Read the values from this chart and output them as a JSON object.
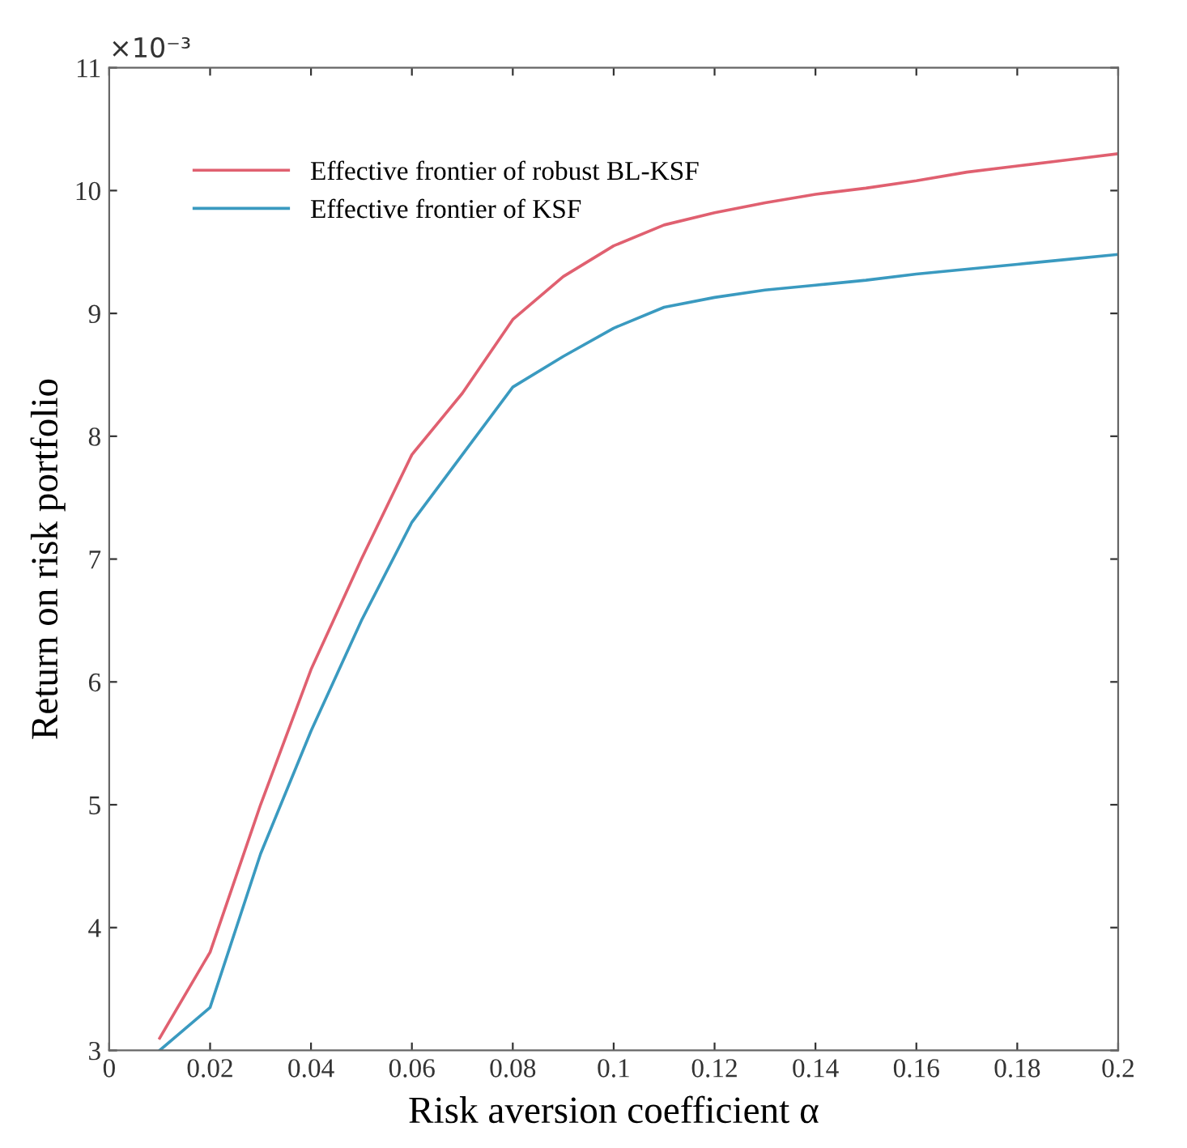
{
  "chart_data": {
    "type": "line",
    "xlabel": "Risk aversion coefficient α",
    "ylabel": "Return on risk portfolio",
    "annotations": [
      "×10⁻³"
    ],
    "x": [
      0.01,
      0.02,
      0.03,
      0.04,
      0.05,
      0.06,
      0.07,
      0.08,
      0.09,
      0.1,
      0.11,
      0.12,
      0.13,
      0.14,
      0.15,
      0.16,
      0.17,
      0.18,
      0.19,
      0.2
    ],
    "series": [
      {
        "name": "Effective frontier of robust BL-KSF",
        "color": "#e06070",
        "values": [
          3.1,
          3.8,
          5.0,
          6.1,
          7.0,
          7.85,
          8.35,
          8.95,
          9.3,
          9.55,
          9.72,
          9.82,
          9.9,
          9.97,
          10.02,
          10.08,
          10.15,
          10.2,
          10.25,
          10.3
        ]
      },
      {
        "name": "Effective frontier of KSF",
        "color": "#3a9ac0",
        "values": [
          3.0,
          3.35,
          4.6,
          5.6,
          6.5,
          7.3,
          7.85,
          8.4,
          8.65,
          8.88,
          9.05,
          9.13,
          9.19,
          9.23,
          9.27,
          9.32,
          9.36,
          9.4,
          9.44,
          9.48
        ]
      }
    ],
    "xlim": [
      0,
      0.2
    ],
    "xticks": [
      0,
      0.02,
      0.04,
      0.06,
      0.08,
      0.1,
      0.12,
      0.14,
      0.16,
      0.18,
      0.2
    ],
    "ylim": [
      3,
      11
    ],
    "yticks": [
      3,
      4,
      5,
      6,
      7,
      8,
      9,
      10,
      11
    ],
    "grid": false,
    "legend": "top left",
    "marker": "none",
    "line_style": "solid"
  }
}
